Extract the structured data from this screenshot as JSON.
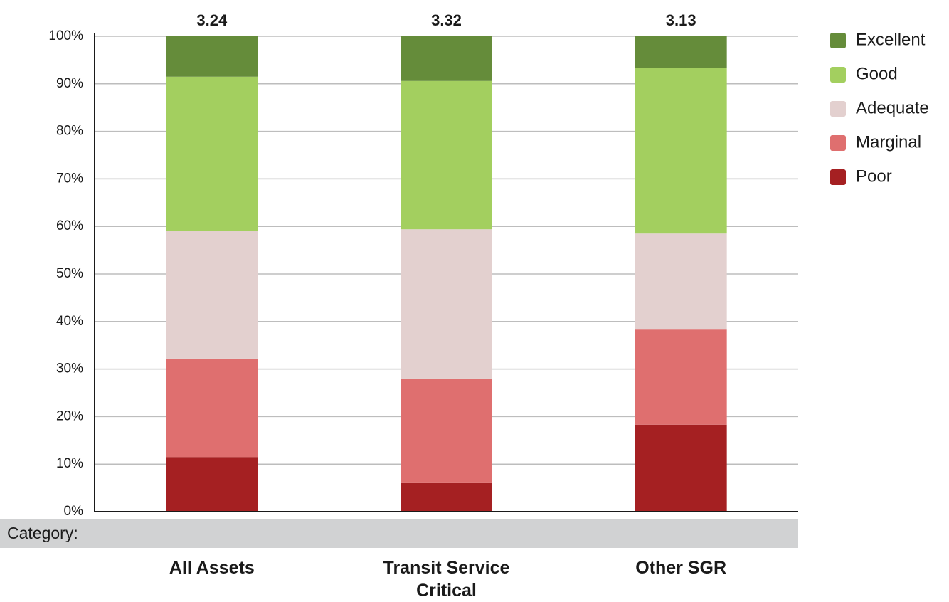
{
  "chart_data": {
    "type": "stacked_bar",
    "categories": [
      "All Assets",
      "Transit Service Critical",
      "Other SGR"
    ],
    "category_label": "Category:",
    "scores": [
      3.24,
      3.32,
      3.13
    ],
    "series": [
      {
        "name": "Poor",
        "color": "#a52022",
        "values": [
          11.5,
          6.0,
          18.3
        ]
      },
      {
        "name": "Marginal",
        "color": "#df6f6f",
        "values": [
          20.7,
          22.0,
          20.0
        ]
      },
      {
        "name": "Adequate",
        "color": "#e3d0cf",
        "values": [
          26.9,
          31.4,
          20.2
        ]
      },
      {
        "name": "Good",
        "color": "#a3cf5f",
        "values": [
          32.4,
          31.2,
          34.8
        ]
      },
      {
        "name": "Excellent",
        "color": "#658c3a",
        "values": [
          8.5,
          9.4,
          6.7
        ]
      }
    ],
    "ylim": [
      0,
      100
    ],
    "yticks": [
      {
        "value": 0,
        "label": "0%"
      },
      {
        "value": 10,
        "label": "10%"
      },
      {
        "value": 20,
        "label": "20%"
      },
      {
        "value": 30,
        "label": "30%"
      },
      {
        "value": 40,
        "label": "40%"
      },
      {
        "value": 50,
        "label": "50%"
      },
      {
        "value": 60,
        "label": "60%"
      },
      {
        "value": 70,
        "label": "70%"
      },
      {
        "value": 80,
        "label": "80%"
      },
      {
        "value": 90,
        "label": "90%"
      },
      {
        "value": 100,
        "label": "100%"
      }
    ],
    "grid": true
  }
}
